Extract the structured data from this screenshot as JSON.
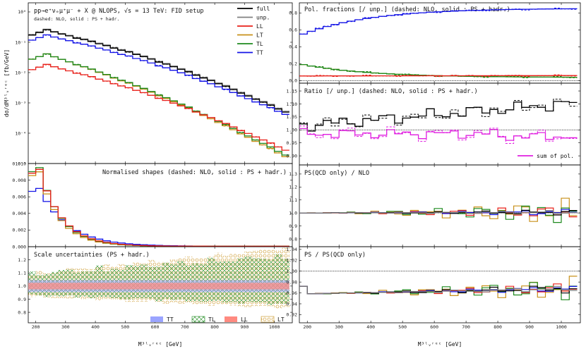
{
  "colors": {
    "full": "#000000",
    "unp": "#808080",
    "LL": "#e8201a",
    "LT": "#c8901a",
    "TL": "#1e8a1e",
    "TT": "#1414e6",
    "sum": "#e020e0"
  },
  "chart_data": [
    {
      "id": "main",
      "type": "line",
      "title": "pp→e⁺νₑμ⁺μ⁻ + X @ NLOPS, √s = 13 TeV: FID setup",
      "subtitle": "dashed: NLO, solid : PS + hadr.",
      "ylabel": "dσ/dM³ˡᵥʳᵉᶜ [fb/GeV]",
      "yscale": "log",
      "ylim": [
        1e-05,
        2
      ],
      "xlim": [
        175,
        1060
      ],
      "yticks": [
        "10⁰",
        "10⁻¹",
        "10⁻²",
        "10⁻³",
        "10⁻⁴",
        "10⁻⁵"
      ],
      "legend_position": "top-right",
      "series": [
        {
          "name": "full",
          "key": "full",
          "peak": 0.25
        },
        {
          "name": "unp.",
          "key": "unp",
          "peak": 0.26
        },
        {
          "name": "LL",
          "key": "LL",
          "peak": 0.018
        },
        {
          "name": "LT",
          "key": "LT",
          "peak": 0.04
        },
        {
          "name": "TL",
          "key": "TL",
          "peak": 0.04
        },
        {
          "name": "TT",
          "key": "TT",
          "peak": 0.17
        }
      ],
      "end_values": {
        "full": 0.00045,
        "unp": 0.00048,
        "LL": 2.5e-05,
        "LT": 1.5e-05,
        "TL": 1.7e-05,
        "TT": 0.00038
      }
    },
    {
      "id": "shapes",
      "type": "line",
      "title": "Normalised shapes (dashed: NLO, solid : PS + hadr.)",
      "ylim": [
        0,
        0.01
      ],
      "yticks": [
        "0.000",
        "0.002",
        "0.004",
        "0.006",
        "0.008",
        "0.010"
      ],
      "peaks": {
        "TT": 0.007,
        "LL": 0.0093,
        "TL": 0.0095,
        "LT": 0.009
      }
    },
    {
      "id": "scale",
      "type": "area",
      "title": "Scale uncertainties (PS + hadr.)",
      "ylim": [
        0.72,
        1.3
      ],
      "yticks": [
        "0.8",
        "0.9",
        "1.0",
        "1.1",
        "1.2"
      ],
      "xticks": [
        "200",
        "300",
        "400",
        "500",
        "600",
        "700",
        "800",
        "900",
        "1000"
      ],
      "xlabel": "M³ˡᵥʳᵉᶜ [GeV]",
      "legend": [
        "TT",
        "TL",
        "LL",
        "LT"
      ]
    },
    {
      "id": "polfrac",
      "type": "line",
      "title": "Pol. fractions [/ unp.] (dashed: NLO, solid : PS + hadr.)",
      "ylim": [
        -0.03,
        0.92
      ],
      "yticks": [
        "0.0",
        "0.2",
        "0.4",
        "0.6",
        "0.8"
      ],
      "series": {
        "TT": [
          0.55,
          0.85
        ],
        "LT": [
          0.19,
          0.04
        ],
        "TL": [
          0.19,
          0.04
        ],
        "LL": [
          0.055,
          0.06
        ]
      }
    },
    {
      "id": "ratio",
      "type": "line",
      "title": "Ratio [/ unp.] (dashed: NLO, solid : PS + hadr.)",
      "ylim": [
        0.865,
        1.18
      ],
      "yticks": [
        "0.90",
        "0.95",
        "1.00",
        "1.05",
        "1.10",
        "1.15"
      ],
      "legend": [
        "sum of pol."
      ]
    },
    {
      "id": "psqcd",
      "type": "line",
      "title": "PS(QCD only) / NLO",
      "ylim": [
        0.74,
        1.37
      ],
      "yticks": [
        "0.8",
        "0.9",
        "1.0",
        "1.1",
        "1.2",
        "1.3"
      ]
    },
    {
      "id": "pshadr",
      "type": "line",
      "title": "PS / PS(QCD only)",
      "ylim": [
        0.905,
        1.045
      ],
      "yticks": [
        "0.92",
        "0.94",
        "0.96",
        "0.98",
        "1.00",
        "1.02",
        "1.04"
      ],
      "xticks": [
        "200",
        "300",
        "400",
        "500",
        "600",
        "700",
        "800",
        "900",
        "1000"
      ],
      "xlabel": "M³ˡᵥʳᵉᶜ [GeV]"
    }
  ]
}
